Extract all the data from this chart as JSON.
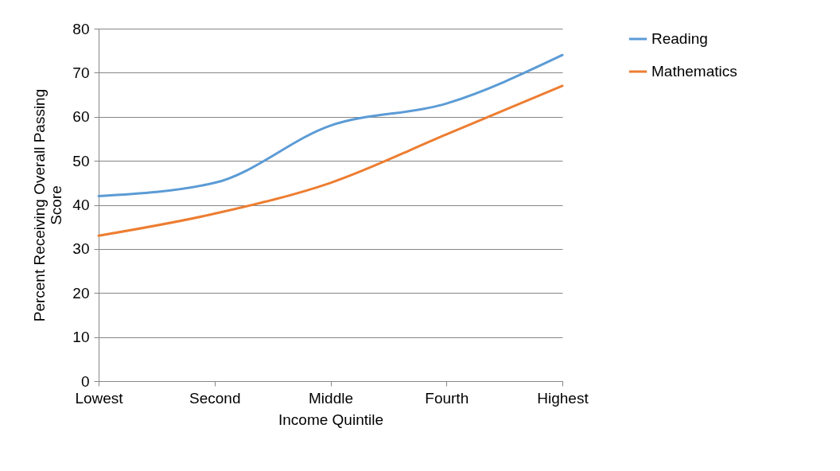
{
  "chart_data": {
    "type": "line",
    "xlabel": "Income Quintile",
    "ylabel": "Percent Receiving Overall Passing Score",
    "categories": [
      "Lowest",
      "Second",
      "Middle",
      "Fourth",
      "Highest"
    ],
    "series": [
      {
        "name": "Reading",
        "color": "#5b9bd5",
        "values": [
          42,
          45,
          58,
          63,
          74
        ]
      },
      {
        "name": "Mathematics",
        "color": "#ed7d31",
        "values": [
          33,
          38,
          45,
          56,
          67
        ]
      }
    ],
    "ylim": [
      0,
      80
    ],
    "yticks": [
      0,
      10,
      20,
      30,
      40,
      50,
      60,
      70,
      80
    ],
    "grid": "y",
    "legend": "right",
    "marker": "none",
    "line_style": "solid"
  }
}
